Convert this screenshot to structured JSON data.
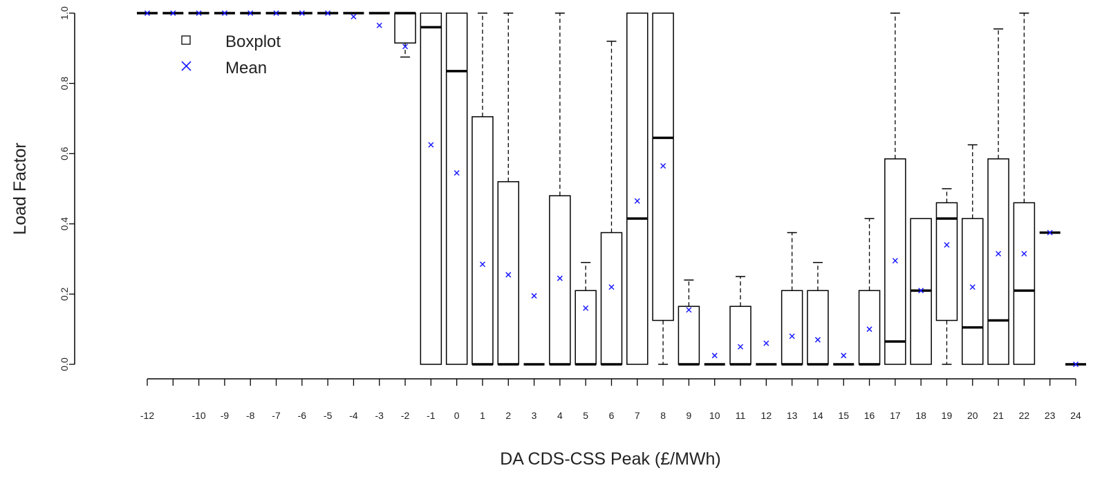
{
  "chart_data": {
    "type": "boxplot",
    "xlabel": "DA CDS-CSS Peak (£/MWh)",
    "ylabel": "Load Factor",
    "ylim": [
      0,
      1
    ],
    "y_ticks": [
      0.0,
      0.2,
      0.4,
      0.6,
      0.8,
      1.0
    ],
    "y_tick_labels": [
      "0.0",
      "0.2",
      "0.4",
      "0.6",
      "0.8",
      "1.0"
    ],
    "legend": {
      "position": "top-left",
      "items": [
        {
          "symbol": "square",
          "label": "Boxplot"
        },
        {
          "symbol": "cross",
          "label": "Mean",
          "color": "#1a1aff"
        }
      ]
    },
    "colors": {
      "box": "#000000",
      "mean": "#1a1aff"
    },
    "categories": [
      {
        "x": -12,
        "label": "-12",
        "min": 1.0,
        "q1": 1.0,
        "median": 1.0,
        "q3": 1.0,
        "max": 1.0,
        "mean": 1.0
      },
      {
        "x": -11,
        "label": "",
        "min": 1.0,
        "q1": 1.0,
        "median": 1.0,
        "q3": 1.0,
        "max": 1.0,
        "mean": 1.0
      },
      {
        "x": -10,
        "label": "-10",
        "min": 1.0,
        "q1": 1.0,
        "median": 1.0,
        "q3": 1.0,
        "max": 1.0,
        "mean": 1.0
      },
      {
        "x": -9,
        "label": "-9",
        "min": 1.0,
        "q1": 1.0,
        "median": 1.0,
        "q3": 1.0,
        "max": 1.0,
        "mean": 1.0
      },
      {
        "x": -8,
        "label": "-8",
        "min": 1.0,
        "q1": 1.0,
        "median": 1.0,
        "q3": 1.0,
        "max": 1.0,
        "mean": 1.0
      },
      {
        "x": -7,
        "label": "-7",
        "min": 1.0,
        "q1": 1.0,
        "median": 1.0,
        "q3": 1.0,
        "max": 1.0,
        "mean": 1.0
      },
      {
        "x": -6,
        "label": "-6",
        "min": 1.0,
        "q1": 1.0,
        "median": 1.0,
        "q3": 1.0,
        "max": 1.0,
        "mean": 1.0
      },
      {
        "x": -5,
        "label": "-5",
        "min": 1.0,
        "q1": 1.0,
        "median": 1.0,
        "q3": 1.0,
        "max": 1.0,
        "mean": 1.0
      },
      {
        "x": -4,
        "label": "-4",
        "min": 1.0,
        "q1": 1.0,
        "median": 1.0,
        "q3": 1.0,
        "max": 1.0,
        "mean": 0.99
      },
      {
        "x": -3,
        "label": "-3",
        "min": 1.0,
        "q1": 1.0,
        "median": 1.0,
        "q3": 1.0,
        "max": 1.0,
        "mean": 0.965
      },
      {
        "x": -2,
        "label": "-2",
        "min": 0.875,
        "q1": 0.915,
        "median": 1.0,
        "q3": 1.0,
        "max": 1.0,
        "mean": 0.905
      },
      {
        "x": -1,
        "label": "-1",
        "min": 0.0,
        "q1": 0.0,
        "median": 0.96,
        "q3": 1.0,
        "max": 1.0,
        "mean": 0.625
      },
      {
        "x": 0,
        "label": "0",
        "min": 0.0,
        "q1": 0.0,
        "median": 0.835,
        "q3": 1.0,
        "max": 1.0,
        "mean": 0.545
      },
      {
        "x": 1,
        "label": "1",
        "min": 0.0,
        "q1": 0.0,
        "median": 0.0,
        "q3": 0.705,
        "max": 1.0,
        "mean": 0.285
      },
      {
        "x": 2,
        "label": "2",
        "min": 0.0,
        "q1": 0.0,
        "median": 0.0,
        "q3": 0.52,
        "max": 1.0,
        "mean": 0.255
      },
      {
        "x": 3,
        "label": "3",
        "min": 0.0,
        "q1": 0.0,
        "median": 0.0,
        "q3": 0.0,
        "max": 0.0,
        "mean": 0.195
      },
      {
        "x": 4,
        "label": "4",
        "min": 0.0,
        "q1": 0.0,
        "median": 0.0,
        "q3": 0.48,
        "max": 1.0,
        "mean": 0.245
      },
      {
        "x": 5,
        "label": "5",
        "min": 0.0,
        "q1": 0.0,
        "median": 0.0,
        "q3": 0.21,
        "max": 0.29,
        "mean": 0.16
      },
      {
        "x": 6,
        "label": "6",
        "min": 0.0,
        "q1": 0.0,
        "median": 0.0,
        "q3": 0.375,
        "max": 0.92,
        "mean": 0.22
      },
      {
        "x": 7,
        "label": "7",
        "min": 0.0,
        "q1": 0.0,
        "median": 0.415,
        "q3": 1.0,
        "max": 1.0,
        "mean": 0.465
      },
      {
        "x": 8,
        "label": "8",
        "min": 0.0,
        "q1": 0.125,
        "median": 0.645,
        "q3": 1.0,
        "max": 1.0,
        "mean": 0.565
      },
      {
        "x": 9,
        "label": "9",
        "min": 0.0,
        "q1": 0.0,
        "median": 0.0,
        "q3": 0.165,
        "max": 0.24,
        "mean": 0.155
      },
      {
        "x": 10,
        "label": "10",
        "min": 0.0,
        "q1": 0.0,
        "median": 0.0,
        "q3": 0.0,
        "max": 0.0,
        "mean": 0.025
      },
      {
        "x": 11,
        "label": "11",
        "min": 0.0,
        "q1": 0.0,
        "median": 0.0,
        "q3": 0.165,
        "max": 0.25,
        "mean": 0.05
      },
      {
        "x": 12,
        "label": "12",
        "min": 0.0,
        "q1": 0.0,
        "median": 0.0,
        "q3": 0.0,
        "max": 0.0,
        "mean": 0.06
      },
      {
        "x": 13,
        "label": "13",
        "min": 0.0,
        "q1": 0.0,
        "median": 0.0,
        "q3": 0.21,
        "max": 0.375,
        "mean": 0.08
      },
      {
        "x": 14,
        "label": "14",
        "min": 0.0,
        "q1": 0.0,
        "median": 0.0,
        "q3": 0.21,
        "max": 0.29,
        "mean": 0.07
      },
      {
        "x": 15,
        "label": "15",
        "min": 0.0,
        "q1": 0.0,
        "median": 0.0,
        "q3": 0.0,
        "max": 0.0,
        "mean": 0.025
      },
      {
        "x": 16,
        "label": "16",
        "min": 0.0,
        "q1": 0.0,
        "median": 0.0,
        "q3": 0.21,
        "max": 0.415,
        "mean": 0.1
      },
      {
        "x": 17,
        "label": "17",
        "min": 0.0,
        "q1": 0.0,
        "median": 0.065,
        "q3": 0.585,
        "max": 1.0,
        "mean": 0.295
      },
      {
        "x": 18,
        "label": "18",
        "min": 0.0,
        "q1": 0.0,
        "median": 0.21,
        "q3": 0.415,
        "max": 0.415,
        "mean": 0.21
      },
      {
        "x": 19,
        "label": "19",
        "min": 0.0,
        "q1": 0.125,
        "median": 0.415,
        "q3": 0.46,
        "max": 0.5,
        "mean": 0.34
      },
      {
        "x": 20,
        "label": "20",
        "min": 0.0,
        "q1": 0.0,
        "median": 0.105,
        "q3": 0.415,
        "max": 0.625,
        "mean": 0.22
      },
      {
        "x": 21,
        "label": "21",
        "min": 0.0,
        "q1": 0.0,
        "median": 0.125,
        "q3": 0.585,
        "max": 0.955,
        "mean": 0.315
      },
      {
        "x": 22,
        "label": "22",
        "min": 0.0,
        "q1": 0.0,
        "median": 0.21,
        "q3": 0.46,
        "max": 1.0,
        "mean": 0.315
      },
      {
        "x": 23,
        "label": "23",
        "min": 0.375,
        "q1": 0.375,
        "median": 0.375,
        "q3": 0.375,
        "max": 0.375,
        "mean": 0.375
      },
      {
        "x": 24,
        "label": "24",
        "min": 0.0,
        "q1": 0.0,
        "median": 0.0,
        "q3": 0.0,
        "max": 0.0,
        "mean": 0.0
      }
    ]
  }
}
